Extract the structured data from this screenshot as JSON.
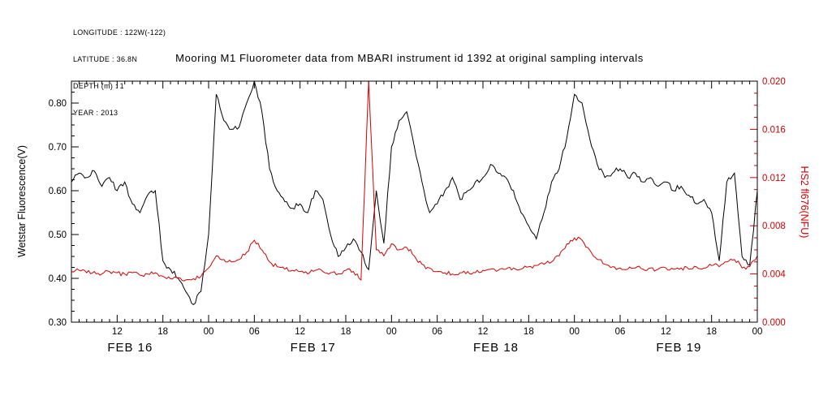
{
  "header": {
    "lines": [
      "LONGITUDE : 122W(-122)",
      "LATITUDE : 36.8N",
      "DEPTH (m) : 1",
      "YEAR : 2013"
    ]
  },
  "title": "Mooring M1 Fluorometer data from MBARI instrument id 1392 at original sampling intervals",
  "chart_data": {
    "type": "line",
    "title": "Mooring M1 Fluorometer data from MBARI instrument id 1392 at original sampling intervals",
    "grid": false,
    "legend": "none",
    "x_axis": {
      "unit": "hours since FEB 16 00:00, 2013",
      "start_hour": 6,
      "end_hour": 96,
      "major_tick_interval_hours": 6,
      "first_major_tick_hour": 12,
      "tick_labels": [
        "12",
        "18",
        "00",
        "06",
        "12",
        "18",
        "00",
        "06",
        "12",
        "18",
        "00",
        "06",
        "12",
        "18",
        "00"
      ],
      "day_labels": [
        "FEB 16",
        "FEB 17",
        "FEB 18",
        "FEB 19"
      ],
      "day_label_hours": [
        12,
        36,
        60,
        84
      ]
    },
    "y_left": {
      "label": "Wetstar Fluorescence(V)",
      "color": "#000000",
      "min": 0.3,
      "max": 0.85,
      "ticks": [
        0.3,
        0.4,
        0.5,
        0.6,
        0.7,
        0.8
      ],
      "decimals": 2,
      "minor_step": 0.025
    },
    "y_right": {
      "label": "HS2 fl676(NFU)",
      "color": "#d40000",
      "min": 0.0,
      "max": 0.02,
      "ticks": [
        0.0,
        0.004,
        0.008,
        0.012,
        0.016,
        0.02
      ],
      "decimals": 3,
      "minor_step": 0.001
    },
    "series": [
      {
        "name": "Wetstar Fluorescence (V)",
        "axis": "left",
        "color": "#000000",
        "x_start_hour": 6,
        "x_step_hours": 1,
        "values": [
          0.62,
          0.64,
          0.63,
          0.645,
          0.61,
          0.63,
          0.6,
          0.62,
          0.57,
          0.55,
          0.59,
          0.6,
          0.44,
          0.42,
          0.4,
          0.37,
          0.34,
          0.37,
          0.5,
          0.82,
          0.76,
          0.74,
          0.745,
          0.8,
          0.85,
          0.78,
          0.65,
          0.6,
          0.575,
          0.56,
          0.57,
          0.55,
          0.6,
          0.58,
          0.5,
          0.45,
          0.47,
          0.49,
          0.46,
          0.42,
          0.6,
          0.48,
          0.7,
          0.76,
          0.78,
          0.7,
          0.62,
          0.55,
          0.57,
          0.6,
          0.63,
          0.58,
          0.6,
          0.62,
          0.63,
          0.66,
          0.64,
          0.63,
          0.6,
          0.55,
          0.52,
          0.49,
          0.55,
          0.62,
          0.65,
          0.72,
          0.82,
          0.8,
          0.72,
          0.66,
          0.63,
          0.64,
          0.65,
          0.63,
          0.64,
          0.62,
          0.63,
          0.61,
          0.62,
          0.6,
          0.61,
          0.59,
          0.57,
          0.58,
          0.55,
          0.44,
          0.62,
          0.64,
          0.45,
          0.43,
          0.6
        ]
      },
      {
        "name": "HS2 fl676 (NFU)",
        "axis": "right",
        "color": "#d40000",
        "x_start_hour": 6,
        "x_step_hours": 1,
        "values": [
          0.0042,
          0.0043,
          0.0041,
          0.0042,
          0.004,
          0.0042,
          0.0041,
          0.004,
          0.0041,
          0.0039,
          0.004,
          0.0041,
          0.0038,
          0.0036,
          0.0037,
          0.0035,
          0.0036,
          0.0038,
          0.0045,
          0.0055,
          0.0052,
          0.005,
          0.0052,
          0.0058,
          0.0068,
          0.006,
          0.005,
          0.0046,
          0.0044,
          0.0043,
          0.0042,
          0.004,
          0.0043,
          0.0042,
          0.0041,
          0.004,
          0.0043,
          0.0042,
          0.0035,
          0.02,
          0.006,
          0.0055,
          0.0065,
          0.006,
          0.0062,
          0.0055,
          0.0048,
          0.0045,
          0.0042,
          0.0041,
          0.004,
          0.0041,
          0.0042,
          0.0041,
          0.0043,
          0.0044,
          0.0043,
          0.0044,
          0.0045,
          0.0044,
          0.0046,
          0.0047,
          0.0048,
          0.005,
          0.0055,
          0.0065,
          0.007,
          0.0068,
          0.006,
          0.0052,
          0.0048,
          0.0046,
          0.0045,
          0.0044,
          0.0045,
          0.0044,
          0.0045,
          0.0044,
          0.0045,
          0.0044,
          0.0045,
          0.0044,
          0.0046,
          0.0045,
          0.0047,
          0.0046,
          0.005,
          0.0052,
          0.0045,
          0.0046,
          0.0055
        ]
      }
    ]
  }
}
